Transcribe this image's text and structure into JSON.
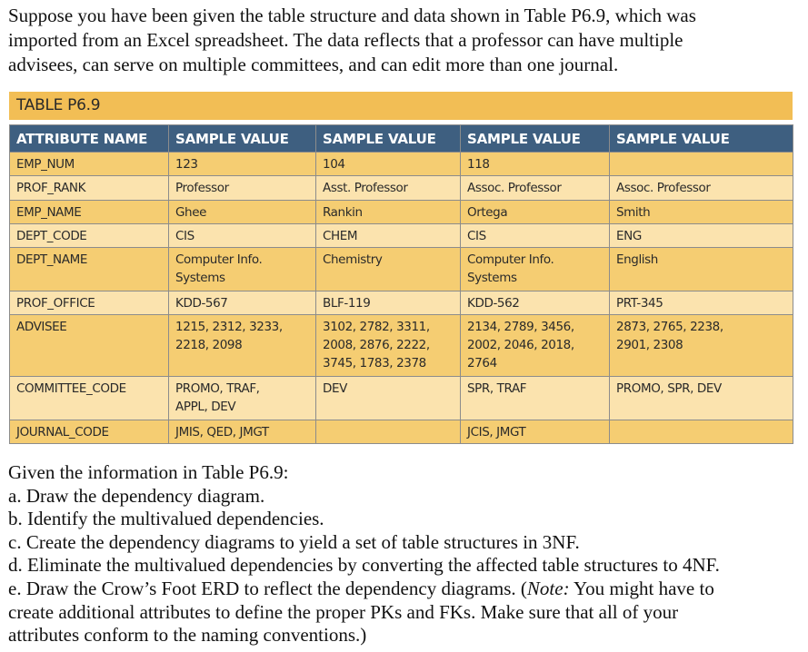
{
  "intro": {
    "lines": [
      "Suppose you have been given the table structure and data shown in Table P6.9, which was",
      "imported from an Excel spreadsheet. The data reflects that a professor can have multiple",
      "advisees, can serve on multiple committees, and can edit more than one journal."
    ]
  },
  "table": {
    "title": "TABLE P6.9",
    "colors": {
      "title_bar": "#F2BE55",
      "header": "#3E5F80",
      "row_dark": "#F5CD72",
      "row_light": "#FBE3AE",
      "border": "#8C8C8C"
    },
    "headers": [
      "ATTRIBUTE NAME",
      "SAMPLE VALUE",
      "SAMPLE VALUE",
      "SAMPLE VALUE",
      "SAMPLE VALUE"
    ],
    "rows": [
      {
        "attr": "EMP_NUM",
        "values": [
          [
            "123"
          ],
          [
            "104"
          ],
          [
            "118"
          ],
          [
            ""
          ]
        ]
      },
      {
        "attr": "PROF_RANK",
        "values": [
          [
            "Professor"
          ],
          [
            "Asst. Professor"
          ],
          [
            "Assoc. Professor"
          ],
          [
            "Assoc. Professor"
          ]
        ]
      },
      {
        "attr": "EMP_NAME",
        "values": [
          [
            "Ghee"
          ],
          [
            "Rankin"
          ],
          [
            "Ortega"
          ],
          [
            "Smith"
          ]
        ]
      },
      {
        "attr": "DEPT_CODE",
        "values": [
          [
            "CIS"
          ],
          [
            "CHEM"
          ],
          [
            "CIS"
          ],
          [
            "ENG"
          ]
        ]
      },
      {
        "attr": "DEPT_NAME",
        "values": [
          [
            "Computer Info.",
            "Systems"
          ],
          [
            "Chemistry"
          ],
          [
            "Computer Info.",
            "Systems"
          ],
          [
            "English"
          ]
        ]
      },
      {
        "attr": "PROF_OFFICE",
        "values": [
          [
            "KDD-567"
          ],
          [
            "BLF-119"
          ],
          [
            "KDD-562"
          ],
          [
            "PRT-345"
          ]
        ]
      },
      {
        "attr": "ADVISEE",
        "values": [
          [
            "1215, 2312, 3233,",
            "2218, 2098"
          ],
          [
            "3102, 2782, 3311,",
            "2008, 2876, 2222,",
            "3745, 1783, 2378"
          ],
          [
            "2134, 2789, 3456,",
            "2002, 2046, 2018,",
            "2764"
          ],
          [
            "2873, 2765, 2238,",
            "2901, 2308"
          ]
        ]
      },
      {
        "attr": "COMMITTEE_CODE",
        "values": [
          [
            "PROMO, TRAF,",
            "APPL, DEV"
          ],
          [
            "DEV"
          ],
          [
            "SPR, TRAF"
          ],
          [
            "PROMO, SPR, DEV"
          ]
        ]
      },
      {
        "attr": "JOURNAL_CODE",
        "values": [
          [
            "JMIS, QED, JMGT"
          ],
          [
            ""
          ],
          [
            "JCIS, JMGT"
          ],
          [
            ""
          ]
        ]
      }
    ]
  },
  "questions": {
    "lead": "Given the information in Table P6.9:",
    "items": [
      "a. Draw the dependency diagram.",
      "b. Identify the multivalued dependencies.",
      "c. Create the dependency diagrams to yield a set of table structures in 3NF.",
      "d. Eliminate the multivalued dependencies by converting the affected table structures to 4NF."
    ],
    "item_e": {
      "prefix": "e. Draw the Crow’s Foot ERD to reflect the dependency diagrams. (",
      "note_label": "Note:",
      "line1_rest": " You might have to",
      "line2": "create additional attributes to define the proper PKs and FKs. Make sure that all of your",
      "line3": "attributes conform to the naming conventions.)"
    }
  }
}
